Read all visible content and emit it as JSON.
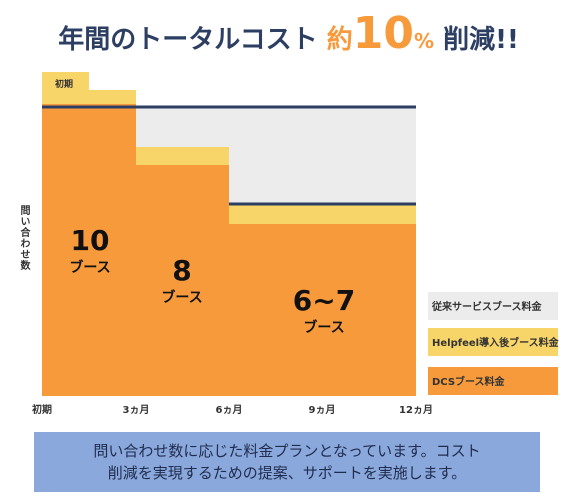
{
  "headline": {
    "prefix": "年間のトータルコスト ",
    "accent_word": "約",
    "number": "10",
    "percent": "%",
    "suffix": " 削減!!"
  },
  "chart_data": {
    "type": "area",
    "ylabel": "問い合わせ数",
    "x_ticks": [
      "初期",
      "3ヵ月",
      "6ヵ月",
      "9ヵ月",
      "12ヵ月"
    ],
    "initial_label": "初期",
    "series": [
      {
        "name": "従来サービスブース料金",
        "color": "#ececec"
      },
      {
        "name": "Helpfeel導入後ブース料金",
        "color": "#f8d568"
      },
      {
        "name": "DCSブース料金",
        "color": "#f79a3c"
      }
    ],
    "booths": [
      {
        "number": "10",
        "unit": "ブース"
      },
      {
        "number": "8",
        "unit": "ブース"
      },
      {
        "number": "6~7",
        "unit": "ブース"
      }
    ],
    "line_color": "#2d3e63"
  },
  "footer": {
    "line1": "問い合わせ数に応じた料金プランとなっています。コスト",
    "line2": "削減を実現するための提案、サポートを実施します。"
  }
}
